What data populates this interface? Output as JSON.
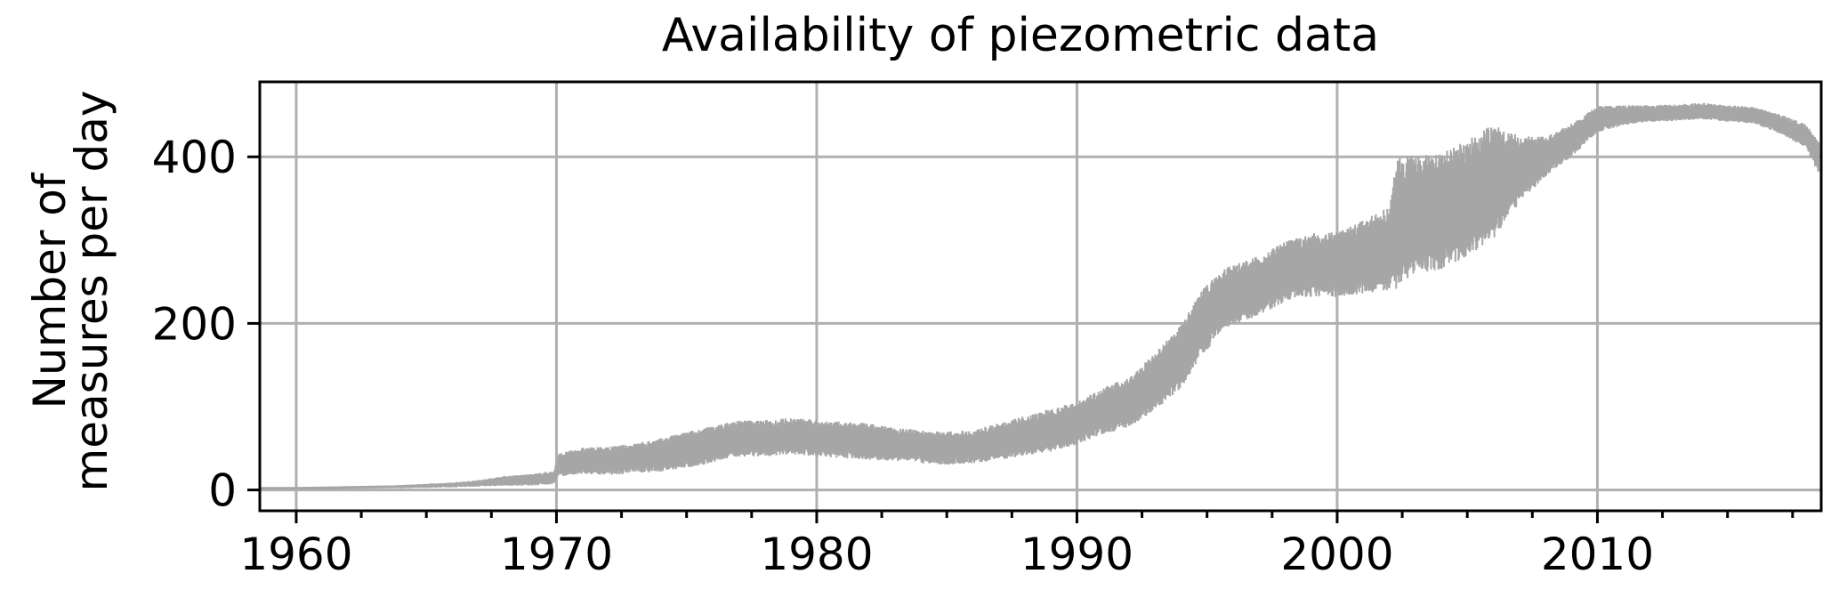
{
  "chart_data": {
    "type": "line",
    "title": "Availability of piezometric data",
    "xlabel": "",
    "ylabel_lines": [
      "Number of",
      "measures per day"
    ],
    "xlim": [
      1958.6,
      2018.6
    ],
    "ylim": [
      -25,
      490
    ],
    "x_ticks": [
      1960,
      1970,
      1980,
      1990,
      2000,
      2010
    ],
    "x_tick_labels": [
      "1960",
      "1970",
      "1980",
      "1990",
      "2000",
      "2010"
    ],
    "x_minor_step": 2.5,
    "y_ticks": [
      0,
      200,
      400
    ],
    "y_tick_labels": [
      "0",
      "200",
      "400"
    ],
    "grid": true,
    "legend": "none",
    "series": [
      {
        "color": "#a6a6a6",
        "x": [
          1958.6,
          1960,
          1962,
          1964,
          1966,
          1967,
          1968,
          1969,
          1969.9,
          1970.1,
          1971,
          1972,
          1973,
          1974,
          1975,
          1976,
          1977,
          1978,
          1979,
          1980,
          1981,
          1982,
          1983,
          1984,
          1985,
          1986,
          1987,
          1988,
          1989,
          1990,
          1991,
          1992,
          1993,
          1994,
          1994.8,
          1995.5,
          1996,
          1997,
          1998,
          1999,
          2000,
          2001,
          2002,
          2002.3,
          2003,
          2004,
          2005,
          2006,
          2007,
          2008,
          2009,
          2010,
          2011,
          2012,
          2013,
          2014,
          2015,
          2016,
          2017,
          2018,
          2018.5
        ],
        "y": [
          2,
          2,
          3,
          4,
          6,
          8,
          11,
          12,
          15,
          30,
          35,
          35,
          38,
          42,
          48,
          55,
          62,
          62,
          65,
          62,
          60,
          58,
          55,
          52,
          50,
          52,
          58,
          65,
          72,
          80,
          95,
          105,
          130,
          160,
          200,
          225,
          235,
          245,
          262,
          270,
          270,
          280,
          290,
          320,
          330,
          335,
          350,
          370,
          385,
          400,
          420,
          445,
          450,
          452,
          453,
          455,
          452,
          450,
          440,
          425,
          400
        ],
        "band": [
          1,
          1,
          1,
          2,
          3,
          4,
          6,
          7,
          8,
          14,
          16,
          17,
          18,
          20,
          22,
          22,
          22,
          22,
          22,
          22,
          22,
          22,
          20,
          20,
          20,
          20,
          22,
          24,
          26,
          26,
          28,
          30,
          34,
          38,
          40,
          38,
          36,
          36,
          36,
          38,
          40,
          44,
          50,
          80,
          70,
          70,
          70,
          70,
          40,
          24,
          20,
          16,
          12,
          10,
          10,
          10,
          10,
          10,
          12,
          14,
          20
        ]
      }
    ]
  }
}
